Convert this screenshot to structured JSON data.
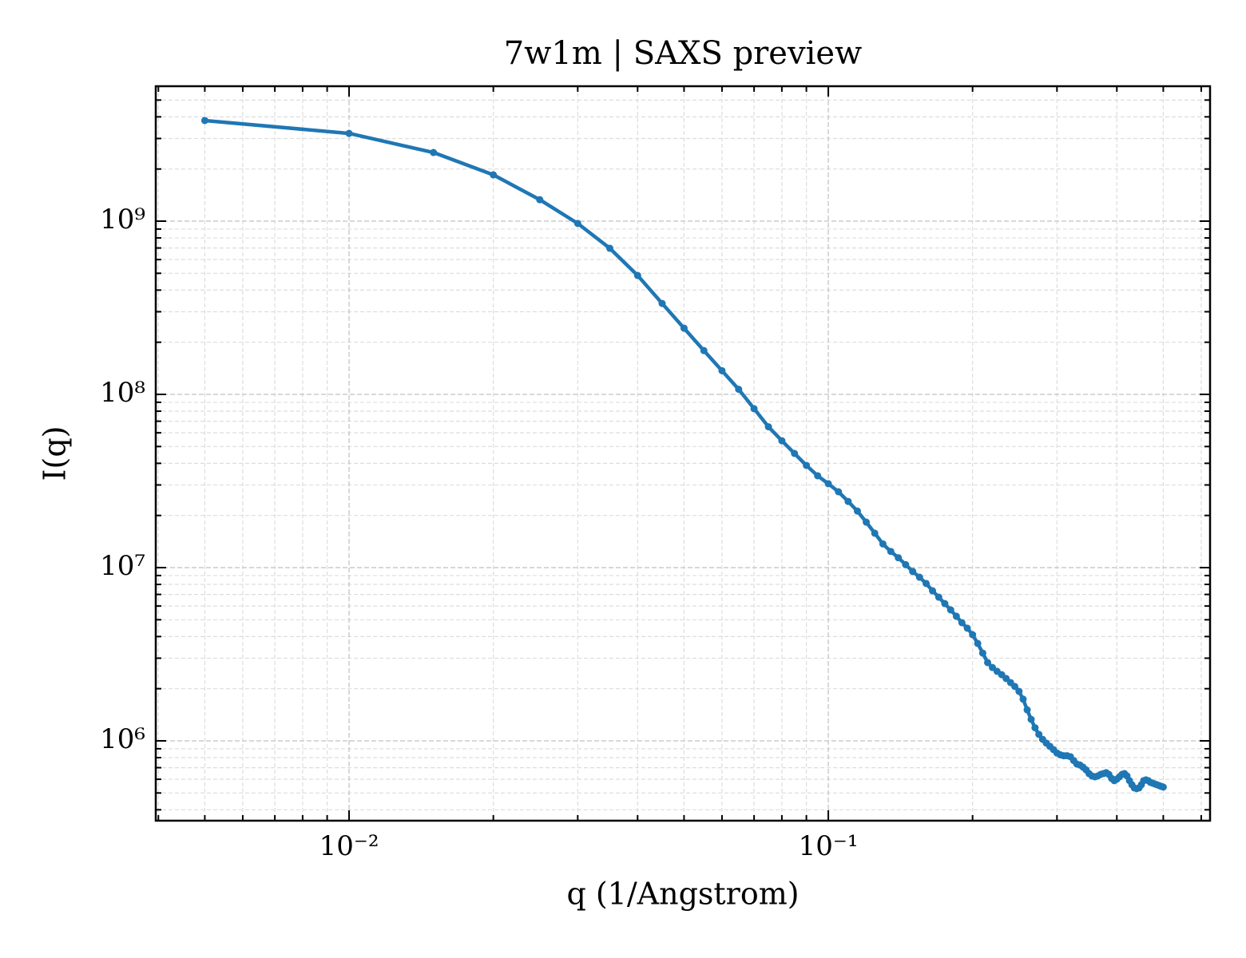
{
  "chart_data": {
    "type": "line",
    "title": "7w1m | SAXS preview",
    "xlabel": "q (1/Angstrom)",
    "ylabel": "I(q)",
    "xscale": "log",
    "yscale": "log",
    "grid": true,
    "color": "#1f77b4",
    "markers": true,
    "xlim": [
      0.00395,
      0.626
    ],
    "ylim": [
      346000,
      6010000000
    ],
    "xticks": [
      {
        "value": 0.01,
        "label": "10⁻²"
      },
      {
        "value": 0.1,
        "label": "10⁻¹"
      }
    ],
    "yticks": [
      {
        "value": 1000000,
        "label": "10⁶"
      },
      {
        "value": 10000000,
        "label": "10⁷"
      },
      {
        "value": 100000000,
        "label": "10⁸"
      },
      {
        "value": 1000000000,
        "label": "10⁹"
      }
    ],
    "xminorticks": [
      0.004,
      0.005,
      0.006,
      0.007,
      0.008,
      0.009,
      0.02,
      0.03,
      0.04,
      0.05,
      0.06,
      0.07,
      0.08,
      0.09,
      0.2,
      0.3,
      0.4,
      0.5,
      0.6
    ],
    "yminorticks": [
      400000,
      500000,
      600000,
      700000,
      800000,
      900000,
      2000000,
      3000000,
      4000000,
      5000000,
      6000000,
      7000000,
      8000000,
      9000000,
      20000000,
      30000000,
      40000000,
      50000000,
      60000000,
      70000000,
      80000000,
      90000000,
      200000000,
      300000000,
      400000000,
      500000000,
      600000000,
      700000000,
      800000000,
      900000000,
      2000000000,
      3000000000,
      4000000000,
      5000000000
    ],
    "x": [
      0.005,
      0.01,
      0.015,
      0.02,
      0.025,
      0.03,
      0.035,
      0.04,
      0.045,
      0.05,
      0.055,
      0.06,
      0.065,
      0.07,
      0.075,
      0.08,
      0.085,
      0.09,
      0.095,
      0.1,
      0.105,
      0.11,
      0.115,
      0.12,
      0.125,
      0.13,
      0.135,
      0.14,
      0.145,
      0.15,
      0.155,
      0.16,
      0.165,
      0.17,
      0.175,
      0.18,
      0.185,
      0.19,
      0.195,
      0.2,
      0.205,
      0.21,
      0.215,
      0.22,
      0.225,
      0.23,
      0.235,
      0.24,
      0.245,
      0.25,
      0.255,
      0.26,
      0.265,
      0.27,
      0.275,
      0.28,
      0.285,
      0.29,
      0.295,
      0.3,
      0.305,
      0.31,
      0.315,
      0.32,
      0.325,
      0.33,
      0.335,
      0.34,
      0.345,
      0.35,
      0.355,
      0.36,
      0.365,
      0.37,
      0.375,
      0.38,
      0.385,
      0.39,
      0.395,
      0.4,
      0.405,
      0.41,
      0.415,
      0.42,
      0.425,
      0.43,
      0.435,
      0.44,
      0.445,
      0.45,
      0.455,
      0.46,
      0.465,
      0.47,
      0.475,
      0.48,
      0.485,
      0.49,
      0.495,
      0.5
    ],
    "values": [
      3810000000,
      3210000000,
      2490000000,
      1850000000,
      1330000000,
      970000000,
      697000000,
      486000000,
      335000000,
      241000000,
      179000000,
      137000000,
      107000000,
      82700000,
      65000000,
      54000000,
      45600000,
      38900000,
      33900000,
      30500000,
      27400000,
      24100000,
      21200000,
      18300000,
      15800000,
      13700000,
      12400000,
      11400000,
      10400000,
      9500000,
      8800000,
      8100000,
      7350000,
      6750000,
      6200000,
      5700000,
      5240000,
      4810000,
      4470000,
      4100000,
      3650000,
      3210000,
      2830000,
      2650000,
      2520000,
      2410000,
      2290000,
      2170000,
      2060000,
      1930000,
      1740000,
      1510000,
      1330000,
      1190000,
      1090000,
      1020000,
      970000,
      930000,
      890000,
      850000,
      830000,
      820000,
      820000,
      810000,
      770000,
      735000,
      725000,
      705000,
      680000,
      647000,
      627000,
      620000,
      627000,
      640000,
      647000,
      655000,
      640000,
      607000,
      589000,
      601000,
      620000,
      640000,
      647000,
      627000,
      589000,
      558000,
      535000,
      530000,
      535000,
      558000,
      589000,
      595000,
      589000,
      576000,
      570000,
      564000,
      558000,
      552000,
      546000,
      541000
    ]
  }
}
